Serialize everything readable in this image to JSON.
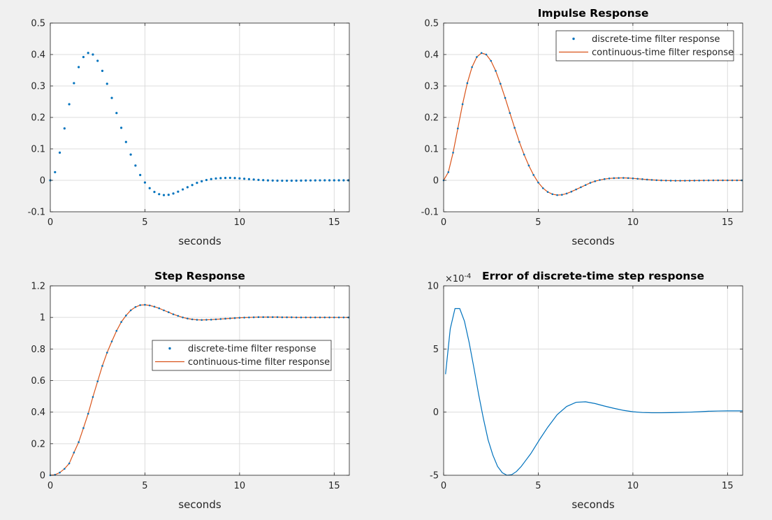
{
  "colors": {
    "background": "#f0f0f0",
    "axes_bg": "#ffffff",
    "axis": "#262626",
    "grid": "#dcdcdc",
    "blue": "#0072bd",
    "orange": "#d95319"
  },
  "chart_data": [
    {
      "type": "scatter",
      "title": "",
      "xlabel": "seconds",
      "ylabel": "",
      "xlim": [
        0,
        15.8
      ],
      "ylim": [
        -0.1,
        0.5
      ],
      "xticks": [
        "0",
        "5",
        "10",
        "15"
      ],
      "yticks": [
        "-0.1",
        "0",
        "0.1",
        "0.2",
        "0.3",
        "0.4",
        "0.5"
      ],
      "xtick_values": [
        0,
        5,
        10,
        15
      ],
      "ytick_values": [
        -0.1,
        0,
        0.1,
        0.2,
        0.3,
        0.4,
        0.5
      ],
      "grid": true,
      "series": [
        {
          "style": "points",
          "color": "#0072bd",
          "x": [
            0,
            0.25,
            0.5,
            0.75,
            1,
            1.25,
            1.5,
            1.75,
            2,
            2.25,
            2.5,
            2.75,
            3,
            3.25,
            3.5,
            3.75,
            4,
            4.25,
            4.5,
            4.75,
            5,
            5.25,
            5.5,
            5.75,
            6,
            6.25,
            6.5,
            6.75,
            7,
            7.25,
            7.5,
            7.75,
            8,
            8.25,
            8.5,
            8.75,
            9,
            9.25,
            9.5,
            9.75,
            10,
            10.25,
            10.5,
            10.75,
            11,
            11.25,
            11.5,
            11.75,
            12,
            12.25,
            12.5,
            12.75,
            13,
            13.25,
            13.5,
            13.75,
            14,
            14.25,
            14.5,
            14.75,
            15,
            15.25,
            15.5,
            15.75
          ],
          "y": [
            0,
            0.026,
            0.088,
            0.165,
            0.242,
            0.309,
            0.36,
            0.392,
            0.405,
            0.4,
            0.38,
            0.348,
            0.307,
            0.262,
            0.214,
            0.167,
            0.122,
            0.082,
            0.047,
            0.017,
            -0.007,
            -0.025,
            -0.037,
            -0.044,
            -0.047,
            -0.046,
            -0.042,
            -0.036,
            -0.029,
            -0.022,
            -0.015,
            -0.008,
            -0.003,
            0.001,
            0.004,
            0.006,
            0.007,
            0.0075,
            0.0077,
            0.0072,
            0.0062,
            0.005,
            0.0038,
            0.0025,
            0.0014,
            0.0005,
            -0.0002,
            -0.0007,
            -0.001,
            -0.0012,
            -0.0012,
            -0.0011,
            -0.001,
            -0.0008,
            -0.0006,
            -0.0004,
            -0.0002,
            -0.0001,
            0,
            0,
            0,
            0,
            0,
            0
          ]
        }
      ]
    },
    {
      "type": "line",
      "title": "Impulse Response",
      "xlabel": "seconds",
      "ylabel": "",
      "xlim": [
        0,
        15.8
      ],
      "ylim": [
        -0.1,
        0.5
      ],
      "xticks": [
        "0",
        "5",
        "10",
        "15"
      ],
      "yticks": [
        "-0.1",
        "0",
        "0.1",
        "0.2",
        "0.3",
        "0.4",
        "0.5"
      ],
      "xtick_values": [
        0,
        5,
        10,
        15
      ],
      "ytick_values": [
        -0.1,
        0,
        0.1,
        0.2,
        0.3,
        0.4,
        0.5
      ],
      "grid": true,
      "legend_position": "top-right",
      "series": [
        {
          "name": "discrete-time filter response",
          "style": "points",
          "color": "#0072bd",
          "x": [
            0,
            0.25,
            0.5,
            0.75,
            1,
            1.25,
            1.5,
            1.75,
            2,
            2.25,
            2.5,
            2.75,
            3,
            3.25,
            3.5,
            3.75,
            4,
            4.25,
            4.5,
            4.75,
            5,
            5.25,
            5.5,
            5.75,
            6,
            6.25,
            6.5,
            6.75,
            7,
            7.25,
            7.5,
            7.75,
            8,
            8.25,
            8.5,
            8.75,
            9,
            9.25,
            9.5,
            9.75,
            10,
            10.25,
            10.5,
            10.75,
            11,
            11.25,
            11.5,
            11.75,
            12,
            12.25,
            12.5,
            12.75,
            13,
            13.25,
            13.5,
            13.75,
            14,
            14.25,
            14.5,
            14.75,
            15,
            15.25,
            15.5,
            15.75
          ],
          "y": [
            0,
            0.026,
            0.088,
            0.165,
            0.242,
            0.309,
            0.36,
            0.392,
            0.405,
            0.4,
            0.38,
            0.348,
            0.307,
            0.262,
            0.214,
            0.167,
            0.122,
            0.082,
            0.047,
            0.017,
            -0.007,
            -0.025,
            -0.037,
            -0.044,
            -0.047,
            -0.046,
            -0.042,
            -0.036,
            -0.029,
            -0.022,
            -0.015,
            -0.008,
            -0.003,
            0.001,
            0.004,
            0.006,
            0.007,
            0.0075,
            0.0077,
            0.0072,
            0.0062,
            0.005,
            0.0038,
            0.0025,
            0.0014,
            0.0005,
            -0.0002,
            -0.0007,
            -0.001,
            -0.0012,
            -0.0012,
            -0.0011,
            -0.001,
            -0.0008,
            -0.0006,
            -0.0004,
            -0.0002,
            -0.0001,
            0,
            0,
            0,
            0,
            0,
            0
          ]
        },
        {
          "name": "continuous-time filter response",
          "style": "line",
          "color": "#d95319",
          "x": [
            0,
            0.25,
            0.5,
            0.75,
            1,
            1.25,
            1.5,
            1.75,
            2,
            2.25,
            2.5,
            2.75,
            3,
            3.25,
            3.5,
            3.75,
            4,
            4.25,
            4.5,
            4.75,
            5,
            5.25,
            5.5,
            5.75,
            6,
            6.25,
            6.5,
            6.75,
            7,
            7.25,
            7.5,
            7.75,
            8,
            8.25,
            8.5,
            8.75,
            9,
            9.25,
            9.5,
            9.75,
            10,
            10.25,
            10.5,
            10.75,
            11,
            11.25,
            11.5,
            11.75,
            12,
            12.25,
            12.5,
            12.75,
            13,
            13.25,
            13.5,
            13.75,
            14,
            14.25,
            14.5,
            14.75,
            15,
            15.25,
            15.5,
            15.75
          ],
          "y": [
            0,
            0.026,
            0.088,
            0.165,
            0.242,
            0.309,
            0.36,
            0.392,
            0.405,
            0.4,
            0.38,
            0.348,
            0.307,
            0.262,
            0.214,
            0.167,
            0.122,
            0.082,
            0.047,
            0.017,
            -0.007,
            -0.025,
            -0.037,
            -0.044,
            -0.047,
            -0.046,
            -0.042,
            -0.036,
            -0.029,
            -0.022,
            -0.015,
            -0.008,
            -0.003,
            0.001,
            0.004,
            0.006,
            0.007,
            0.0075,
            0.0077,
            0.0072,
            0.0062,
            0.005,
            0.0038,
            0.0025,
            0.0014,
            0.0005,
            -0.0002,
            -0.0007,
            -0.001,
            -0.0012,
            -0.0012,
            -0.0011,
            -0.001,
            -0.0008,
            -0.0006,
            -0.0004,
            -0.0002,
            -0.0001,
            0,
            0,
            0,
            0,
            0,
            0
          ]
        }
      ]
    },
    {
      "type": "line",
      "title": "Step Response",
      "xlabel": "seconds",
      "ylabel": "",
      "xlim": [
        0,
        15.8
      ],
      "ylim": [
        0,
        1.2
      ],
      "xticks": [
        "0",
        "5",
        "10",
        "15"
      ],
      "yticks": [
        "0",
        "0.2",
        "0.4",
        "0.6",
        "0.8",
        "1",
        "1.2"
      ],
      "xtick_values": [
        0,
        5,
        10,
        15
      ],
      "ytick_values": [
        0,
        0.2,
        0.4,
        0.6,
        0.8,
        1,
        1.2
      ],
      "grid": true,
      "legend_position": "center",
      "series": [
        {
          "name": "discrete-time filter response",
          "style": "points",
          "color": "#0072bd",
          "x": [
            0,
            0.25,
            0.5,
            0.75,
            1,
            1.25,
            1.5,
            1.75,
            2,
            2.25,
            2.5,
            2.75,
            3,
            3.25,
            3.5,
            3.75,
            4,
            4.25,
            4.5,
            4.75,
            5,
            5.25,
            5.5,
            5.75,
            6,
            6.25,
            6.5,
            6.75,
            7,
            7.25,
            7.5,
            7.75,
            8,
            8.25,
            8.5,
            8.75,
            9,
            9.25,
            9.5,
            9.75,
            10,
            10.25,
            10.5,
            10.75,
            11,
            11.25,
            11.5,
            11.75,
            12,
            12.25,
            12.5,
            12.75,
            13,
            13.25,
            13.5,
            13.75,
            14,
            14.25,
            14.5,
            14.75,
            15,
            15.25,
            15.5,
            15.75
          ],
          "y": [
            0,
            0.003,
            0.017,
            0.041,
            0.075,
            0.144,
            0.21,
            0.299,
            0.39,
            0.496,
            0.595,
            0.693,
            0.777,
            0.848,
            0.915,
            0.971,
            1.012,
            1.045,
            1.066,
            1.078,
            1.08,
            1.076,
            1.068,
            1.058,
            1.045,
            1.033,
            1.02,
            1.01,
            1.0,
            0.993,
            0.988,
            0.985,
            0.984,
            0.985,
            0.986,
            0.988,
            0.99,
            0.992,
            0.994,
            0.996,
            0.998,
            0.999,
            1.0,
            1.001,
            1.002,
            1.002,
            1.002,
            1.002,
            1.002,
            1.001,
            1.001,
            1.001,
            1.0,
            1.0,
            1.0,
            1.0,
            1.0,
            1.0,
            1.0,
            1.0,
            1.0,
            1.0,
            1.0,
            1.0
          ]
        },
        {
          "name": "continuous-time filter response",
          "style": "line",
          "color": "#d95319",
          "x": [
            0,
            0.25,
            0.5,
            0.75,
            1,
            1.25,
            1.5,
            1.75,
            2,
            2.25,
            2.5,
            2.75,
            3,
            3.25,
            3.5,
            3.75,
            4,
            4.25,
            4.5,
            4.75,
            5,
            5.25,
            5.5,
            5.75,
            6,
            6.25,
            6.5,
            6.75,
            7,
            7.25,
            7.5,
            7.75,
            8,
            8.25,
            8.5,
            8.75,
            9,
            9.25,
            9.5,
            9.75,
            10,
            10.25,
            10.5,
            10.75,
            11,
            11.25,
            11.5,
            11.75,
            12,
            12.25,
            12.5,
            12.75,
            13,
            13.25,
            13.5,
            13.75,
            14,
            14.25,
            14.5,
            14.75,
            15,
            15.25,
            15.5,
            15.75
          ],
          "y": [
            0,
            0.003,
            0.017,
            0.041,
            0.075,
            0.144,
            0.21,
            0.299,
            0.39,
            0.496,
            0.595,
            0.693,
            0.777,
            0.848,
            0.915,
            0.971,
            1.012,
            1.045,
            1.066,
            1.078,
            1.08,
            1.076,
            1.068,
            1.058,
            1.045,
            1.033,
            1.02,
            1.01,
            1.0,
            0.993,
            0.988,
            0.985,
            0.984,
            0.985,
            0.986,
            0.988,
            0.99,
            0.992,
            0.994,
            0.996,
            0.998,
            0.999,
            1.0,
            1.001,
            1.002,
            1.002,
            1.002,
            1.002,
            1.002,
            1.001,
            1.001,
            1.001,
            1.0,
            1.0,
            1.0,
            1.0,
            1.0,
            1.0,
            1.0,
            1.0,
            1.0,
            1.0,
            1.0,
            1.0
          ]
        }
      ]
    },
    {
      "type": "line",
      "title": "Error of discrete-time step response",
      "xlabel": "seconds",
      "ylabel": "",
      "exponent_label": "×10",
      "exponent_power": "-4",
      "xlim": [
        0,
        15.8
      ],
      "ylim": [
        -5,
        10
      ],
      "xticks": [
        "0",
        "5",
        "10",
        "15"
      ],
      "yticks": [
        "-5",
        "0",
        "5",
        "10"
      ],
      "xtick_values": [
        0,
        5,
        10,
        15
      ],
      "ytick_values": [
        -5,
        0,
        5,
        10
      ],
      "grid": true,
      "series": [
        {
          "style": "line",
          "color": "#0072bd",
          "x": [
            0.1,
            0.35,
            0.6,
            0.85,
            1.1,
            1.35,
            1.6,
            1.85,
            2.1,
            2.35,
            2.6,
            2.85,
            3.1,
            3.35,
            3.6,
            3.85,
            4.1,
            4.35,
            4.6,
            4.85,
            5.1,
            5.5,
            6,
            6.5,
            7,
            7.5,
            8,
            8.5,
            9,
            9.5,
            10,
            10.5,
            11,
            11.5,
            12,
            12.5,
            13,
            13.5,
            14,
            14.5,
            15,
            15.5,
            15.8
          ],
          "y": [
            3.0,
            6.6,
            8.2,
            8.2,
            7.2,
            5.5,
            3.5,
            1.4,
            -0.5,
            -2.2,
            -3.4,
            -4.3,
            -4.8,
            -5.0,
            -4.95,
            -4.7,
            -4.3,
            -3.8,
            -3.3,
            -2.7,
            -2.1,
            -1.2,
            -0.2,
            0.45,
            0.78,
            0.82,
            0.68,
            0.48,
            0.3,
            0.14,
            0.03,
            -0.03,
            -0.05,
            -0.05,
            -0.04,
            -0.02,
            0,
            0.03,
            0.07,
            0.09,
            0.1,
            0.1,
            0.1
          ]
        }
      ]
    }
  ]
}
